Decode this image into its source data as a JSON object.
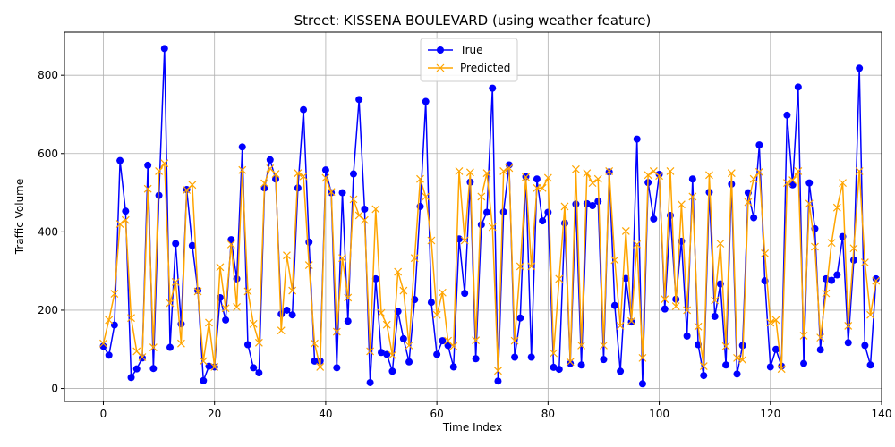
{
  "chart_data": {
    "type": "line",
    "title": "Street: KISSENA BOULEVARD (using weather feature)",
    "xlabel": "Time Index",
    "ylabel": "Traffic Volume",
    "xlim": [
      -7,
      140
    ],
    "ylim": [
      -33,
      910
    ],
    "x_ticks": [
      0,
      20,
      40,
      60,
      80,
      100,
      120,
      140
    ],
    "y_ticks": [
      0,
      200,
      400,
      600,
      800
    ],
    "grid": true,
    "legend_position": "top-center",
    "series": [
      {
        "name": "True",
        "color": "#0000ff",
        "marker": "circle",
        "values": [
          108,
          85,
          162,
          582,
          453,
          28,
          50,
          78,
          570,
          51,
          493,
          868,
          105,
          370,
          165,
          508,
          365,
          250,
          20,
          57,
          55,
          232,
          175,
          380,
          280,
          617,
          112,
          53,
          40,
          512,
          584,
          535,
          190,
          200,
          188,
          512,
          712,
          374,
          70,
          70,
          558,
          500,
          53,
          500,
          172,
          548,
          738,
          458,
          15,
          280,
          92,
          87,
          44,
          197,
          127,
          68,
          227,
          465,
          733,
          220,
          87,
          122,
          110,
          55,
          382,
          243,
          527,
          76,
          418,
          450,
          767,
          19,
          451,
          571,
          80,
          180,
          541,
          80,
          535,
          428,
          450,
          54,
          49,
          422,
          64,
          471,
          60,
          472,
          467,
          478,
          74,
          553,
          212,
          44,
          281,
          170,
          637,
          12,
          526,
          433,
          547,
          203,
          442,
          228,
          376,
          134,
          535,
          112,
          33,
          501,
          184,
          267,
          60,
          522,
          37,
          110,
          500,
          436,
          622,
          275,
          55,
          100,
          57,
          698,
          520,
          770,
          64,
          525,
          408,
          99,
          280,
          276,
          290,
          388,
          117,
          328,
          818,
          110,
          60,
          280
        ]
      },
      {
        "name": "Predicted",
        "color": "#ffa500",
        "marker": "x",
        "values": [
          115,
          175,
          242,
          420,
          430,
          180,
          95,
          80,
          510,
          105,
          555,
          575,
          218,
          272,
          115,
          507,
          520,
          248,
          70,
          168,
          55,
          310,
          205,
          368,
          208,
          558,
          248,
          165,
          117,
          524,
          562,
          548,
          148,
          340,
          250,
          550,
          542,
          315,
          115,
          55,
          538,
          502,
          145,
          333,
          232,
          483,
          442,
          430,
          95,
          458,
          193,
          163,
          85,
          298,
          250,
          110,
          333,
          535,
          490,
          378,
          188,
          245,
          122,
          108,
          555,
          378,
          552,
          123,
          490,
          550,
          412,
          45,
          555,
          563,
          122,
          312,
          540,
          312,
          512,
          512,
          538,
          90,
          280,
          465,
          68,
          560,
          110,
          550,
          525,
          535,
          110,
          555,
          328,
          160,
          402,
          172,
          368,
          78,
          545,
          555,
          543,
          228,
          555,
          210,
          470,
          200,
          490,
          158,
          57,
          545,
          225,
          370,
          108,
          550,
          78,
          73,
          476,
          535,
          553,
          345,
          168,
          175,
          50,
          525,
          532,
          555,
          135,
          472,
          362,
          130,
          243,
          372,
          462,
          525,
          160,
          358,
          555,
          322,
          188,
          275
        ]
      }
    ]
  }
}
